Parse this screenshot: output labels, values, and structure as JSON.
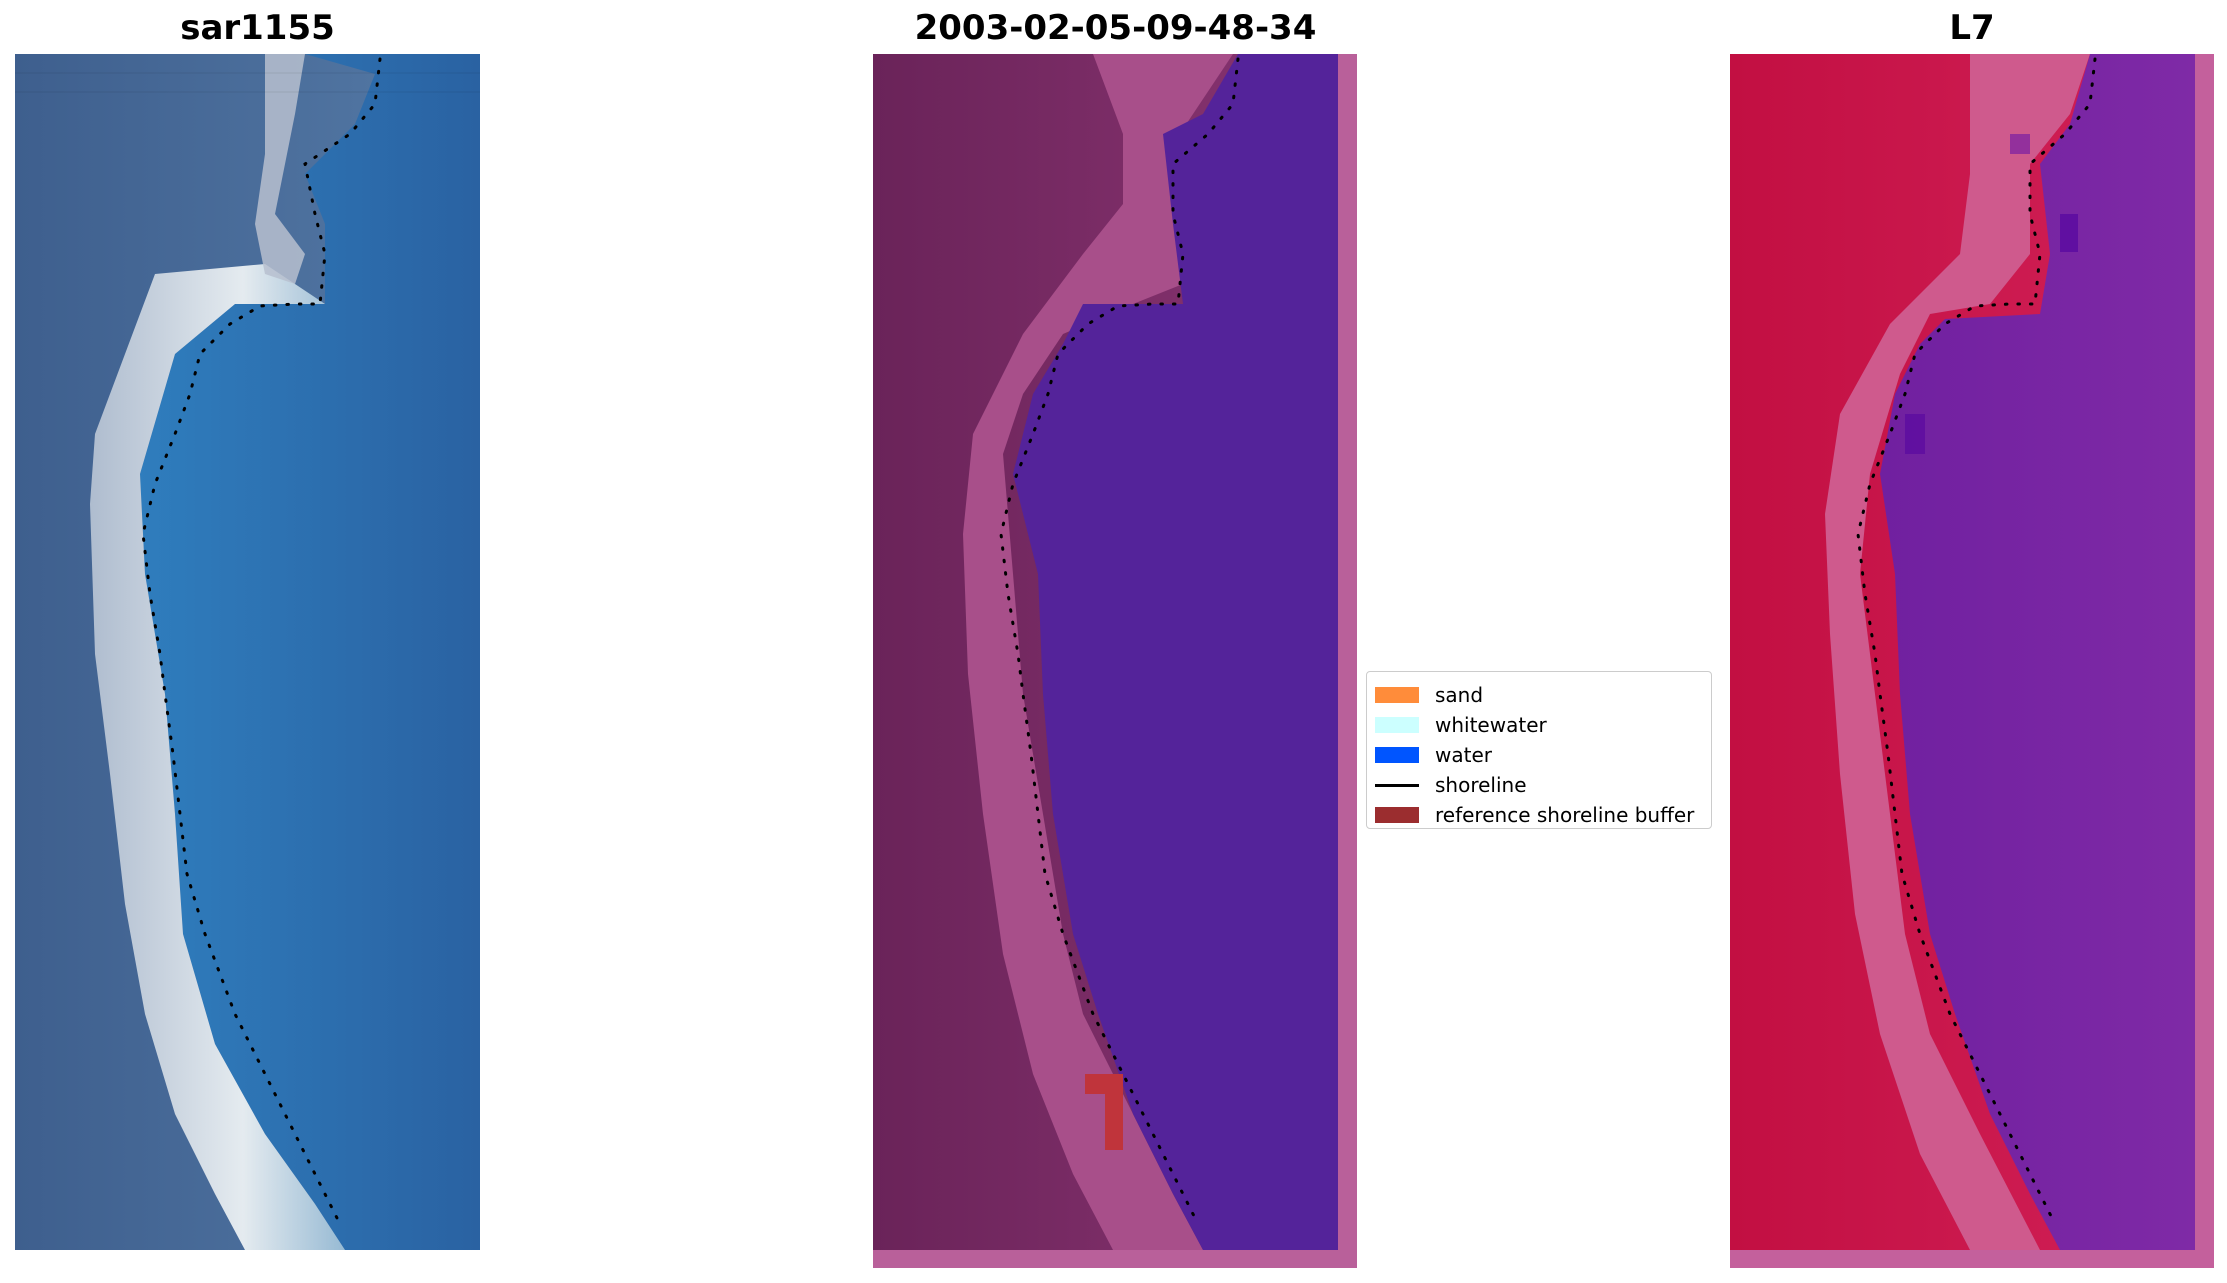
{
  "panels": [
    {
      "title": "sar1155",
      "description_icon": "rgb-satellite-image"
    },
    {
      "title": "2003-02-05-09-48-34",
      "description_icon": "classified-image"
    },
    {
      "title": "L7",
      "description_icon": "mndwi-image"
    }
  ],
  "legend": {
    "items": [
      {
        "label": "sand",
        "color": "#ff8c3a",
        "kind": "patch"
      },
      {
        "label": "whitewater",
        "color": "#ccffff",
        "kind": "patch"
      },
      {
        "label": "water",
        "color": "#0055ff",
        "kind": "patch"
      },
      {
        "label": "shoreline",
        "color": "#000000",
        "kind": "line"
      },
      {
        "label": "reference shoreline buffer",
        "color": "#9b2d2f",
        "kind": "patch"
      }
    ]
  },
  "colors": {
    "rgb_water": "#2f6aa8",
    "rgb_land": "#4a6a96",
    "rgb_surf": "#e6ecef",
    "class_land": "#6e2561",
    "class_wet": "#a84f8a",
    "class_water": "#54239a",
    "class_border": "#b9609a",
    "class_buffer": "#c0343b",
    "mndwi_land": "#c8184c",
    "mndwi_edge": "#d06aa2",
    "mndwi_water": "#7a24a4"
  }
}
